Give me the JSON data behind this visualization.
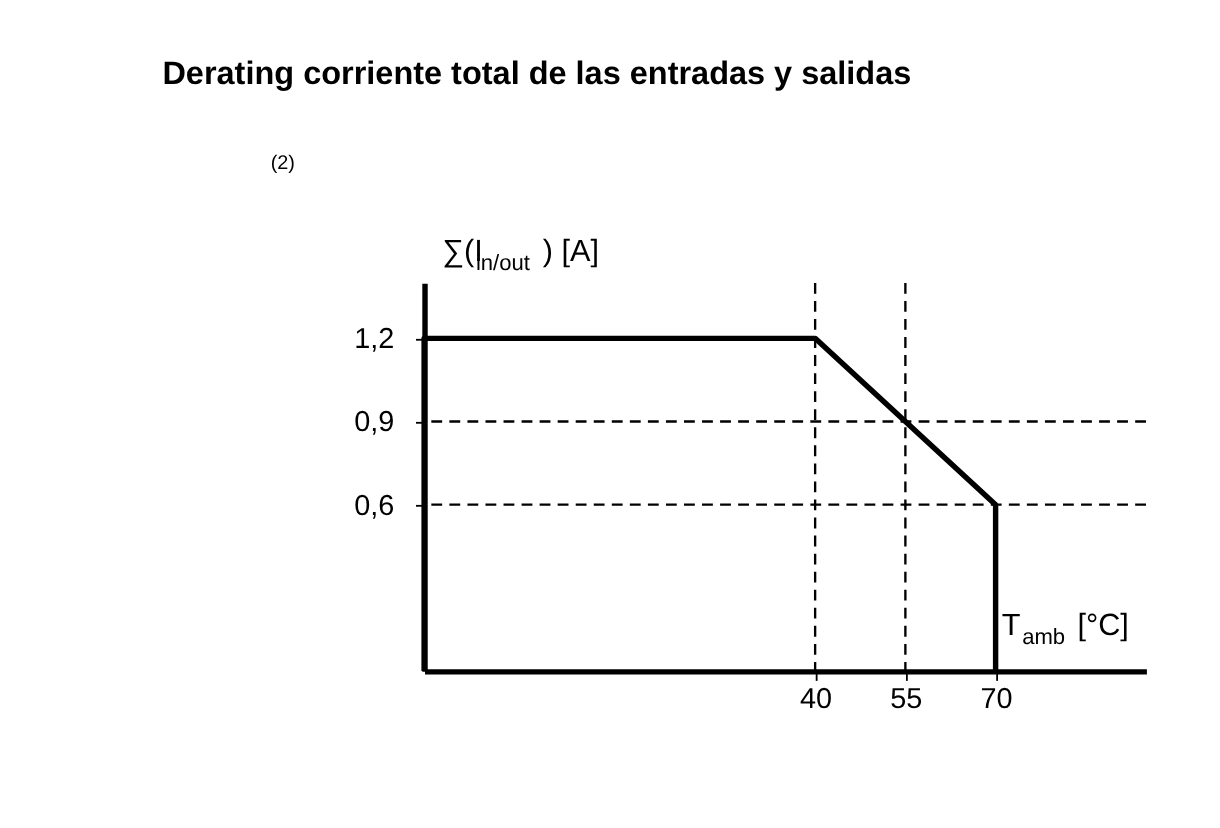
{
  "chart_data": {
    "type": "line",
    "title": "Derating corriente total de las entradas y salidas",
    "xlabel": "T$_{amb}$ [°C]",
    "ylabel": "∑(I$_{in/out}$) [A]",
    "x": [
      -25,
      -25,
      40,
      70,
      70
    ],
    "series": [
      {
        "color": "#000000",
        "values": [
          0,
          1.2,
          1.2,
          0.6,
          0
        ]
      }
    ],
    "xlim": [
      -25,
      95
    ],
    "ylim": [
      0,
      1.4
    ],
    "xticks": [
      40,
      55,
      70
    ],
    "yticks": [
      {
        "value": 0.6,
        "label": "0,6"
      },
      {
        "value": 0.9,
        "label": "0,9"
      },
      {
        "value": 1.2,
        "label": "1,2"
      }
    ],
    "ref_lines": [
      {
        "axis": "x",
        "value": 40,
        "line_style": "dashed",
        "color": "#000000"
      },
      {
        "axis": "x",
        "value": 55,
        "line_style": "dashed",
        "color": "#000000"
      },
      {
        "axis": "y",
        "value": 0.9,
        "line_style": "dashed",
        "color": "#000000"
      },
      {
        "axis": "y",
        "value": 0.6,
        "line_style": "dashed",
        "color": "#000000"
      }
    ],
    "annotations": [
      "(2)"
    ],
    "grid": false,
    "marker": "none",
    "line_style": "solid"
  }
}
